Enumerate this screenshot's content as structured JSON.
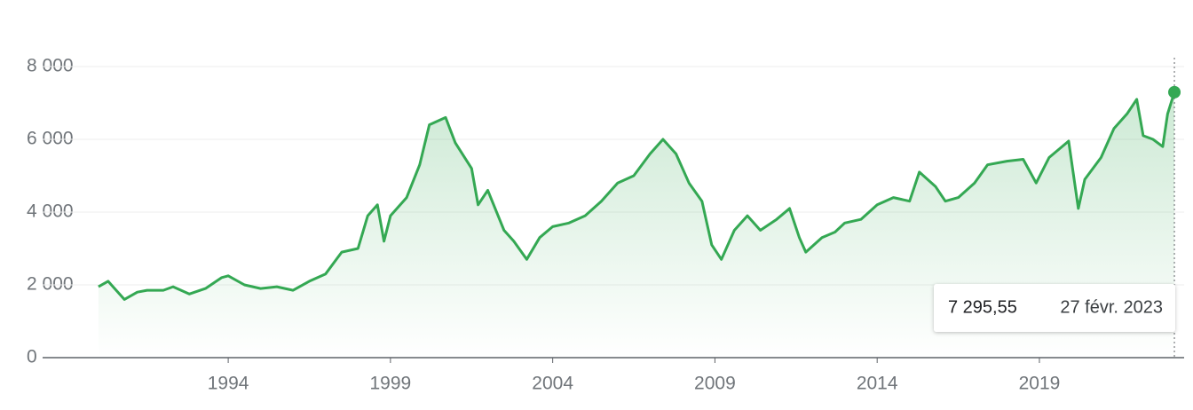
{
  "chart_data": {
    "type": "line",
    "color": "#34a853",
    "xlim": [
      1988.28,
      2023.46
    ],
    "ylim": [
      0,
      8000
    ],
    "xticks": [
      1994,
      1999,
      2004,
      2009,
      2014,
      2019
    ],
    "yticks": [
      {
        "value": 0,
        "label": "0"
      },
      {
        "value": 2000,
        "label": "2 000"
      },
      {
        "value": 4000,
        "label": "4 000"
      },
      {
        "value": 6000,
        "label": "6 000"
      },
      {
        "value": 8000,
        "label": "8 000"
      }
    ],
    "grid": true,
    "x": [
      1990.0,
      1990.3,
      1990.8,
      1991.2,
      1991.5,
      1992.0,
      1992.3,
      1992.8,
      1993.3,
      1993.8,
      1994.0,
      1994.5,
      1995.0,
      1995.5,
      1996.0,
      1996.5,
      1997.0,
      1997.5,
      1998.0,
      1998.3,
      1998.6,
      1998.8,
      1999.0,
      1999.5,
      1999.9,
      2000.2,
      2000.7,
      2001.0,
      2001.5,
      2001.7,
      2002.0,
      2002.5,
      2002.8,
      2003.2,
      2003.6,
      2004.0,
      2004.5,
      2005.0,
      2005.5,
      2006.0,
      2006.5,
      2007.0,
      2007.4,
      2007.8,
      2008.2,
      2008.6,
      2008.9,
      2009.2,
      2009.6,
      2010.0,
      2010.4,
      2010.9,
      2011.3,
      2011.6,
      2011.8,
      2012.3,
      2012.7,
      2013.0,
      2013.5,
      2014.0,
      2014.5,
      2015.0,
      2015.3,
      2015.8,
      2016.1,
      2016.5,
      2017.0,
      2017.4,
      2018.0,
      2018.5,
      2018.9,
      2019.3,
      2019.9,
      2020.2,
      2020.4,
      2020.9,
      2021.3,
      2021.7,
      2022.0,
      2022.2,
      2022.5,
      2022.8,
      2022.95,
      2023.16
    ],
    "values": [
      1950,
      2100,
      1600,
      1800,
      1850,
      1850,
      1950,
      1750,
      1900,
      2200,
      2250,
      2000,
      1900,
      1950,
      1850,
      2100,
      2300,
      2900,
      3000,
      3900,
      4200,
      3200,
      3900,
      4400,
      5300,
      6400,
      6600,
      5900,
      5200,
      4200,
      4600,
      3500,
      3200,
      2700,
      3300,
      3600,
      3700,
      3900,
      4300,
      4800,
      5000,
      5600,
      6000,
      5600,
      4800,
      4300,
      3100,
      2700,
      3500,
      3900,
      3500,
      3800,
      4100,
      3300,
      2900,
      3300,
      3450,
      3700,
      3800,
      4200,
      4400,
      4300,
      5100,
      4700,
      4300,
      4400,
      4800,
      5300,
      5400,
      5450,
      4800,
      5500,
      5950,
      4100,
      4900,
      5500,
      6300,
      6700,
      7100,
      6100,
      6000,
      5800,
      6700,
      7295.55
    ],
    "tooltip": {
      "value": 7295.55,
      "label": "7 295,55",
      "date": "27 févr. 2023"
    }
  }
}
